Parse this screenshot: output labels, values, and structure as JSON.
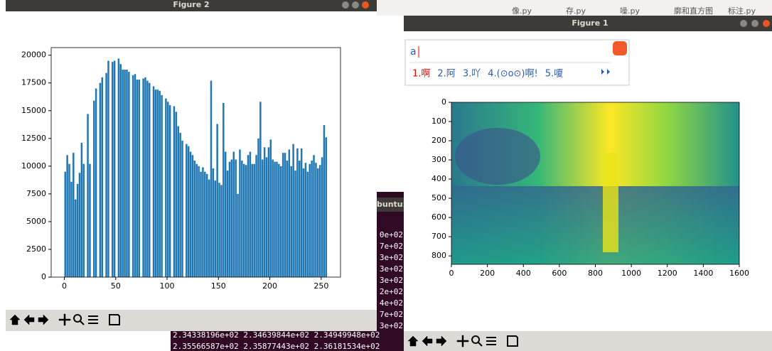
{
  "editor_tabs": [
    "像.py",
    "存.py",
    "噪.py",
    "廓和直方图",
    "标注.py"
  ],
  "terminal": {
    "title": "buntu: ~",
    "lines": [
      "0e+02",
      "7e+02",
      "3e+02",
      "3e+02",
      "3e+02",
      "2e+02",
      "4e+02",
      "7e+02",
      "3e+02"
    ],
    "bottom_lines": [
      "2.34338196e+02 2.34639844e+02 2.34949948e+02",
      "2.35566587e+02 2.35877443e+02 2.36181534e+02"
    ]
  },
  "windows": [
    {
      "title": "Figure 2"
    },
    {
      "title": "Figure 1"
    }
  ],
  "ime": {
    "input": "a",
    "candidates": [
      "1.啊",
      "2.阿",
      "3.吖",
      "4.(⊙o⊙)啊!",
      "5.嗄"
    ]
  },
  "chart_data": [
    {
      "type": "histogram",
      "color": "#1f77b4",
      "bins": [
        0,
        2,
        4,
        6,
        8,
        10,
        12,
        14,
        16,
        18,
        20,
        22,
        24,
        26,
        28,
        30,
        32,
        34,
        36,
        38,
        40,
        42,
        44,
        46,
        48,
        50,
        52,
        54,
        56,
        58,
        60,
        62,
        64,
        66,
        68,
        70,
        72,
        74,
        76,
        78,
        80,
        82,
        84,
        86,
        88,
        90,
        92,
        94,
        96,
        98,
        100,
        102,
        104,
        106,
        108,
        110,
        112,
        114,
        116,
        118,
        120,
        122,
        124,
        126,
        128,
        130,
        132,
        134,
        136,
        138,
        140,
        142,
        144,
        146,
        148,
        150,
        152,
        154,
        156,
        158,
        160,
        162,
        164,
        166,
        168,
        170,
        172,
        174,
        176,
        178,
        180,
        182,
        184,
        186,
        188,
        190,
        192,
        194,
        196,
        198,
        200,
        202,
        204,
        206,
        208,
        210,
        212,
        214,
        216,
        218,
        220,
        222,
        224,
        226,
        228,
        230,
        232,
        234,
        236,
        238,
        240,
        242,
        244,
        246,
        248,
        250,
        252,
        254,
        256
      ],
      "values": [
        9500,
        11000,
        10200,
        8600,
        11200,
        7000,
        8400,
        9400,
        12100,
        10200,
        0,
        14700,
        10200,
        0,
        15900,
        17000,
        0,
        17500,
        18000,
        0,
        18400,
        19500,
        0,
        19400,
        19500,
        0,
        19700,
        19200,
        18700,
        18700,
        18700,
        18500,
        0,
        18200,
        18300,
        17800,
        17800,
        0,
        17900,
        18000,
        17700,
        17500,
        0,
        17200,
        16900,
        16900,
        16800,
        16400,
        0,
        16100,
        15800,
        15500,
        0,
        15400,
        14900,
        13600,
        13000,
        12300,
        0,
        12000,
        11800,
        11300,
        11000,
        10500,
        10200,
        10000,
        9500,
        9900,
        9500,
        9300,
        8800,
        17700,
        9800,
        8700,
        13800,
        8500,
        8300,
        15700,
        11300,
        9600,
        10400,
        10600,
        11300,
        10600,
        7500,
        11500,
        10500,
        10200,
        10100,
        11000,
        11300,
        10200,
        10200,
        11000,
        12500,
        15800,
        10600,
        11700,
        10800,
        11700,
        12400,
        10600,
        10400,
        10400,
        10200,
        10000,
        11200,
        11200,
        10500,
        11500,
        10000,
        12000,
        9600,
        11600,
        10500,
        11600,
        9800,
        10300,
        9500,
        10200,
        10500,
        11000,
        10300,
        9800,
        10100,
        10800,
        13700,
        12600
      ],
      "xlim": [
        -12.8,
        268.8
      ],
      "xticks": [
        0,
        50,
        100,
        150,
        200,
        250
      ],
      "ylim": [
        0,
        20685
      ],
      "yticks": [
        0,
        2500,
        5000,
        7500,
        10000,
        12500,
        15000,
        17500,
        20000
      ]
    },
    {
      "type": "image",
      "xlim": [
        0,
        1600
      ],
      "xticks": [
        0,
        200,
        400,
        600,
        800,
        1000,
        1200,
        1400,
        1600
      ],
      "ylim": [
        844,
        0
      ],
      "yticks": [
        0,
        100,
        200,
        300,
        400,
        500,
        600,
        700,
        800
      ]
    }
  ]
}
